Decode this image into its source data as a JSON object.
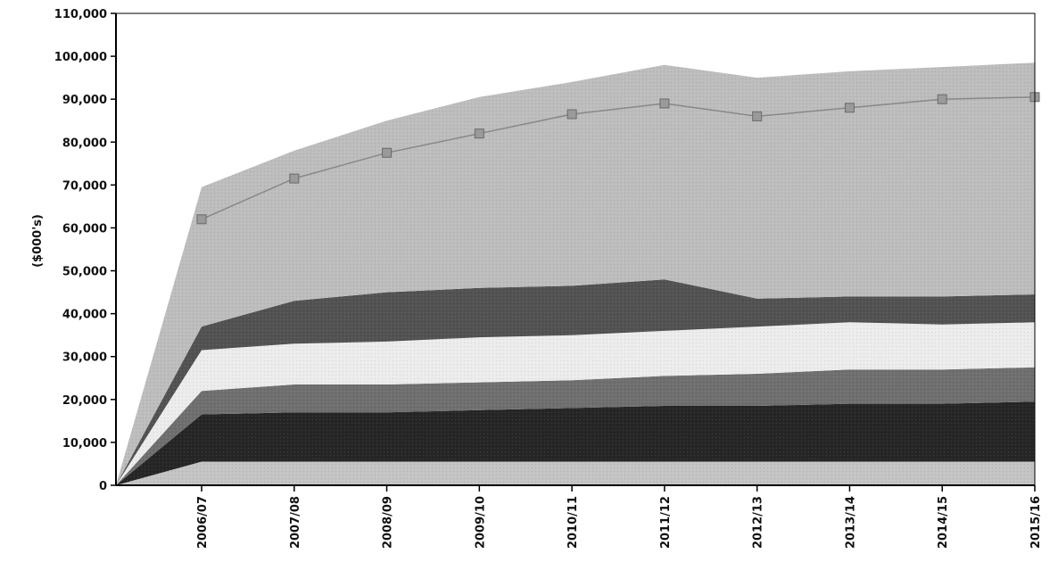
{
  "chart_data": {
    "type": "area",
    "stacked": true,
    "title": "",
    "xlabel": "",
    "ylabel": "($000's)",
    "ylim": [
      0,
      110000
    ],
    "yticks": [
      0,
      10000,
      20000,
      30000,
      40000,
      50000,
      60000,
      70000,
      80000,
      90000,
      100000,
      110000
    ],
    "ytick_labels": [
      "0",
      "10,000",
      "20,000",
      "30,000",
      "40,000",
      "50,000",
      "60,000",
      "70,000",
      "80,000",
      "90,000",
      "100,000",
      "110,000"
    ],
    "categories": [
      "2006/07",
      "2007/08",
      "2008/09",
      "2009/10",
      "2010/11",
      "2011/12",
      "2012/13",
      "2013/14",
      "2014/15",
      "2015/16"
    ],
    "x_starts_at_zero_before_first_category": true,
    "grid": false,
    "legend": "none",
    "series": [
      {
        "values": [
          5500,
          5500,
          5500,
          5500,
          5500,
          5500,
          5500,
          5500,
          5500,
          5500
        ],
        "color": "#c4c4c4"
      },
      {
        "values": [
          11000,
          11500,
          11500,
          12000,
          12500,
          13000,
          13000,
          13500,
          13500,
          14000
        ],
        "color": "#262626"
      },
      {
        "values": [
          5500,
          6500,
          6500,
          6500,
          6500,
          7000,
          7500,
          8000,
          8000,
          8000
        ],
        "color": "#6f6f6f"
      },
      {
        "values": [
          9500,
          9500,
          10000,
          10500,
          10500,
          10500,
          11000,
          11000,
          10500,
          10500
        ],
        "color": "#ececec"
      },
      {
        "values": [
          5500,
          10000,
          11500,
          11500,
          11500,
          12000,
          6500,
          6000,
          6500,
          6500
        ],
        "color": "#525252"
      },
      {
        "values": [
          32500,
          35000,
          40000,
          44500,
          47500,
          50000,
          51500,
          52500,
          53500,
          54000
        ],
        "color": "#bdbdbd"
      }
    ],
    "line_series": {
      "values": [
        62000,
        71500,
        77500,
        82000,
        86500,
        89000,
        86000,
        88000,
        90000,
        90500
      ],
      "color": "#888888",
      "marker_color": "#9a9a9a"
    }
  }
}
